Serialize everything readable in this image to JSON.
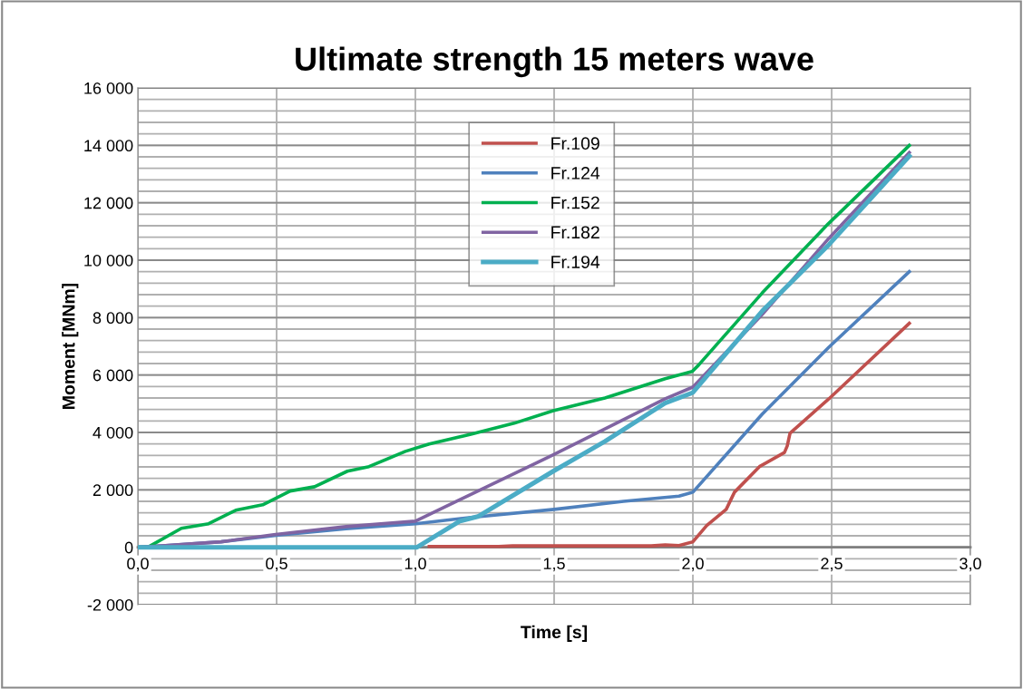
{
  "chart_data": {
    "type": "line",
    "title": "Ultimate strength 15 meters wave",
    "xlabel": "Time [s]",
    "ylabel": "Moment [MNm]",
    "xlim": [
      0,
      3
    ],
    "ylim": [
      -2000,
      16000
    ],
    "xticks": [
      {
        "value": 0,
        "label": "0,0"
      },
      {
        "value": 0.5,
        "label": "0,5"
      },
      {
        "value": 1,
        "label": "1,0"
      },
      {
        "value": 1.5,
        "label": "1,5"
      },
      {
        "value": 2,
        "label": "2,0"
      },
      {
        "value": 2.5,
        "label": "2,5"
      },
      {
        "value": 3,
        "label": "3,0"
      }
    ],
    "yticks": [
      {
        "value": -2000,
        "label": "-2 000"
      },
      {
        "value": -1600,
        "label": null
      },
      {
        "value": -1200,
        "label": null
      },
      {
        "value": -800,
        "label": null
      },
      {
        "value": -400,
        "label": null
      },
      0,
      {
        "value": 400,
        "label": null
      },
      {
        "value": 800,
        "label": null
      },
      {
        "value": 1200,
        "label": null
      },
      {
        "value": 1600,
        "label": null
      },
      {
        "value": 2000,
        "label": "2 000"
      },
      {
        "value": 2400,
        "label": null
      },
      {
        "value": 2800,
        "label": null
      },
      {
        "value": 3200,
        "label": null
      },
      {
        "value": 3600,
        "label": null
      },
      {
        "value": 4000,
        "label": "4 000"
      },
      {
        "value": 4400,
        "label": null
      },
      {
        "value": 4800,
        "label": null
      },
      {
        "value": 5200,
        "label": null
      },
      {
        "value": 5600,
        "label": null
      },
      {
        "value": 6000,
        "label": "6 000"
      },
      {
        "value": 6400,
        "label": null
      },
      {
        "value": 6800,
        "label": null
      },
      {
        "value": 7200,
        "label": null
      },
      {
        "value": 7600,
        "label": null
      },
      {
        "value": 8000,
        "label": "8 000"
      },
      {
        "value": 8400,
        "label": null
      },
      {
        "value": 8800,
        "label": null
      },
      {
        "value": 9200,
        "label": null
      },
      {
        "value": 9600,
        "label": null
      },
      {
        "value": 10000,
        "label": "10 000"
      },
      {
        "value": 10400,
        "label": null
      },
      {
        "value": 10800,
        "label": null
      },
      {
        "value": 11200,
        "label": null
      },
      {
        "value": 11600,
        "label": null
      },
      {
        "value": 12000,
        "label": "12 000"
      },
      {
        "value": 12400,
        "label": null
      },
      {
        "value": 12800,
        "label": null
      },
      {
        "value": 13200,
        "label": null
      },
      {
        "value": 13600,
        "label": null
      },
      {
        "value": 14000,
        "label": "14 000"
      },
      {
        "value": 14400,
        "label": null
      },
      {
        "value": 14800,
        "label": null
      },
      {
        "value": 15200,
        "label": null
      },
      {
        "value": 15600,
        "label": null
      },
      {
        "value": 16000,
        "label": "16 000"
      }
    ],
    "grid": true,
    "legend": "top",
    "marker": "none",
    "line_style": "solid",
    "series": [
      {
        "name": "Fr.109",
        "color": "#c0504d",
        "x": [
          1.05,
          1.3,
          1.35,
          1.85,
          1.9,
          1.95,
          2.0,
          2.05,
          2.12,
          2.15,
          2.24,
          2.33,
          2.34,
          2.35,
          2.49,
          2.78
        ],
        "values": [
          30,
          30,
          50,
          50,
          80,
          60,
          190,
          760,
          1320,
          1920,
          2810,
          3300,
          3530,
          3970,
          5170,
          7800
        ]
      },
      {
        "name": "Fr.124",
        "color": "#4f81bd",
        "x": [
          0,
          0.1,
          0.3,
          0.5,
          0.75,
          1.0,
          1.2,
          1.5,
          1.75,
          1.95,
          2.0,
          2.25,
          2.49,
          2.78
        ],
        "values": [
          0,
          60,
          190,
          420,
          650,
          820,
          1040,
          1320,
          1600,
          1780,
          1920,
          4640,
          6970,
          9600
        ]
      },
      {
        "name": "Fr.152",
        "color": "#00b050",
        "x": [
          0,
          0.036,
          0.157,
          0.255,
          0.353,
          0.45,
          0.549,
          0.637,
          0.755,
          0.833,
          0.964,
          1.05,
          1.2,
          1.356,
          1.497,
          1.683,
          1.9,
          1.997,
          2.02,
          2.25,
          2.487,
          2.78
        ],
        "values": [
          0,
          0,
          660,
          820,
          1290,
          1480,
          1960,
          2110,
          2650,
          2810,
          3340,
          3600,
          3940,
          4320,
          4760,
          5200,
          5870,
          6120,
          6340,
          8860,
          11260,
          14000
        ]
      },
      {
        "name": "Fr.182",
        "color": "#8064a2",
        "x": [
          0,
          0.1,
          0.3,
          0.49,
          0.75,
          1.0,
          1.137,
          1.497,
          1.9,
          2.0,
          2.25,
          2.49,
          2.78
        ],
        "values": [
          0,
          60,
          190,
          440,
          720,
          910,
          1550,
          3220,
          5170,
          5580,
          8110,
          10760,
          13750
        ]
      },
      {
        "name": "Fr.194",
        "color": "#4bacc6",
        "x": [
          0,
          1.006,
          1.07,
          1.16,
          1.225,
          1.497,
          1.683,
          1.9,
          2.0,
          2.25,
          2.49,
          2.78
        ],
        "values": [
          0,
          0,
          380,
          910,
          1070,
          2650,
          3690,
          5020,
          5390,
          8230,
          10540,
          13630
        ]
      }
    ]
  }
}
